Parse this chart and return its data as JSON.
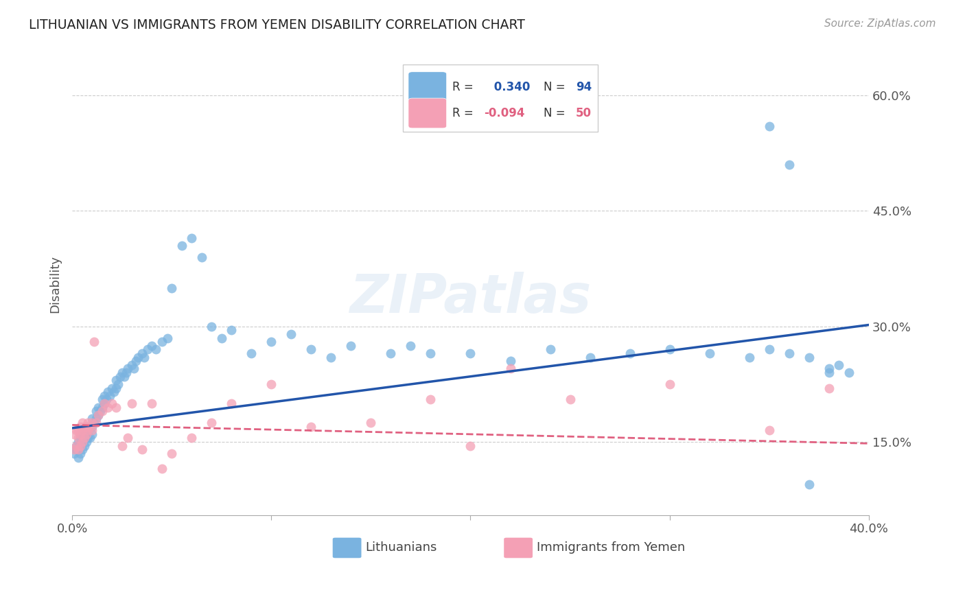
{
  "title": "LITHUANIAN VS IMMIGRANTS FROM YEMEN DISABILITY CORRELATION CHART",
  "source": "Source: ZipAtlas.com",
  "ylabel": "Disability",
  "xlim": [
    0.0,
    0.4
  ],
  "ylim": [
    0.055,
    0.655
  ],
  "ytick_vals": [
    0.15,
    0.3,
    0.45,
    0.6
  ],
  "ytick_labels": [
    "15.0%",
    "30.0%",
    "45.0%",
    "60.0%"
  ],
  "xtick_vals": [
    0.0,
    0.1,
    0.2,
    0.3,
    0.4
  ],
  "xtick_labels": [
    "0.0%",
    "",
    "",
    "",
    "40.0%"
  ],
  "grid_color": "#cccccc",
  "background_color": "#ffffff",
  "blue_color": "#7ab3e0",
  "pink_color": "#f4a0b5",
  "blue_line_color": "#2255aa",
  "pink_line_color": "#e06080",
  "dot_size": 100,
  "dot_alpha": 0.75,
  "blue_R": 0.34,
  "blue_N": 94,
  "pink_R": -0.094,
  "pink_N": 50,
  "blue_line_x": [
    0.0,
    0.4
  ],
  "blue_line_y": [
    0.168,
    0.302
  ],
  "pink_line_x": [
    0.0,
    0.4
  ],
  "pink_line_y": [
    0.172,
    0.148
  ],
  "blue_x": [
    0.001,
    0.002,
    0.002,
    0.003,
    0.003,
    0.003,
    0.004,
    0.004,
    0.004,
    0.005,
    0.005,
    0.005,
    0.006,
    0.006,
    0.006,
    0.007,
    0.007,
    0.007,
    0.008,
    0.008,
    0.008,
    0.009,
    0.009,
    0.01,
    0.01,
    0.01,
    0.011,
    0.012,
    0.012,
    0.013,
    0.013,
    0.014,
    0.015,
    0.015,
    0.016,
    0.016,
    0.017,
    0.018,
    0.019,
    0.02,
    0.021,
    0.022,
    0.022,
    0.023,
    0.024,
    0.025,
    0.026,
    0.027,
    0.028,
    0.03,
    0.031,
    0.032,
    0.033,
    0.035,
    0.036,
    0.038,
    0.04,
    0.042,
    0.045,
    0.048,
    0.05,
    0.055,
    0.06,
    0.065,
    0.07,
    0.075,
    0.08,
    0.09,
    0.1,
    0.11,
    0.12,
    0.13,
    0.14,
    0.16,
    0.17,
    0.18,
    0.2,
    0.22,
    0.24,
    0.26,
    0.28,
    0.3,
    0.32,
    0.34,
    0.35,
    0.36,
    0.37,
    0.38,
    0.385,
    0.39,
    0.35,
    0.36,
    0.37,
    0.38
  ],
  "blue_y": [
    0.135,
    0.14,
    0.145,
    0.13,
    0.14,
    0.15,
    0.135,
    0.145,
    0.155,
    0.14,
    0.15,
    0.16,
    0.145,
    0.155,
    0.165,
    0.15,
    0.155,
    0.165,
    0.155,
    0.16,
    0.17,
    0.155,
    0.17,
    0.16,
    0.17,
    0.18,
    0.175,
    0.18,
    0.19,
    0.185,
    0.195,
    0.19,
    0.195,
    0.205,
    0.2,
    0.21,
    0.205,
    0.215,
    0.21,
    0.22,
    0.215,
    0.22,
    0.23,
    0.225,
    0.235,
    0.24,
    0.235,
    0.24,
    0.245,
    0.25,
    0.245,
    0.255,
    0.26,
    0.265,
    0.26,
    0.27,
    0.275,
    0.27,
    0.28,
    0.285,
    0.35,
    0.405,
    0.415,
    0.39,
    0.3,
    0.285,
    0.295,
    0.265,
    0.28,
    0.29,
    0.27,
    0.26,
    0.275,
    0.265,
    0.275,
    0.265,
    0.265,
    0.255,
    0.27,
    0.26,
    0.265,
    0.27,
    0.265,
    0.26,
    0.27,
    0.265,
    0.095,
    0.24,
    0.25,
    0.24,
    0.56,
    0.51,
    0.26,
    0.245
  ],
  "pink_x": [
    0.001,
    0.001,
    0.002,
    0.002,
    0.003,
    0.003,
    0.003,
    0.004,
    0.004,
    0.004,
    0.005,
    0.005,
    0.005,
    0.006,
    0.006,
    0.007,
    0.007,
    0.008,
    0.008,
    0.009,
    0.01,
    0.01,
    0.011,
    0.012,
    0.013,
    0.015,
    0.016,
    0.018,
    0.02,
    0.022,
    0.025,
    0.028,
    0.03,
    0.035,
    0.04,
    0.045,
    0.05,
    0.06,
    0.07,
    0.08,
    0.1,
    0.12,
    0.15,
    0.18,
    0.2,
    0.22,
    0.25,
    0.3,
    0.35,
    0.38
  ],
  "pink_y": [
    0.14,
    0.16,
    0.145,
    0.165,
    0.14,
    0.155,
    0.165,
    0.145,
    0.16,
    0.17,
    0.15,
    0.165,
    0.175,
    0.155,
    0.17,
    0.16,
    0.17,
    0.165,
    0.175,
    0.17,
    0.175,
    0.165,
    0.28,
    0.175,
    0.185,
    0.19,
    0.2,
    0.195,
    0.2,
    0.195,
    0.145,
    0.155,
    0.2,
    0.14,
    0.2,
    0.115,
    0.135,
    0.155,
    0.175,
    0.2,
    0.225,
    0.17,
    0.175,
    0.205,
    0.145,
    0.245,
    0.205,
    0.225,
    0.165,
    0.22
  ]
}
